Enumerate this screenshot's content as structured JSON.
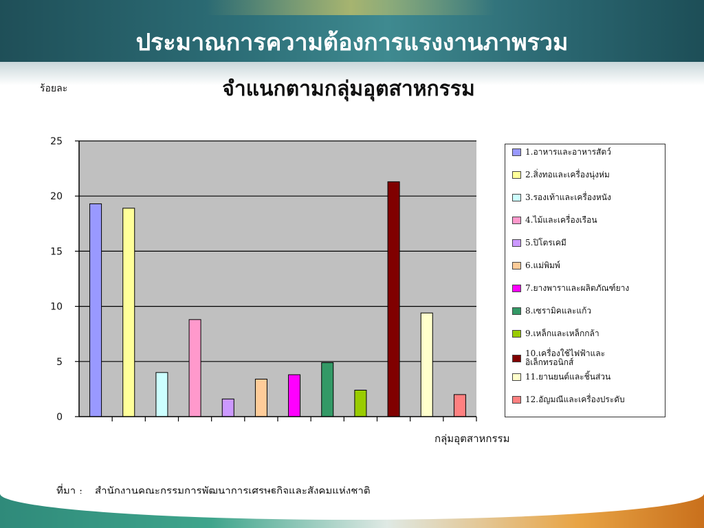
{
  "header": {
    "title": "ประมาณการความต้องการแรงงานภาพรวม",
    "subtitle": "จำแนกตามกลุ่มอุตสาหกรรม"
  },
  "source": {
    "label": "ที่มา :",
    "text": "สำนักงานคณะกรรมการพัฒนาการเศรษฐกิจและสังคมแห่งชาติ"
  },
  "chart_data": {
    "type": "bar",
    "title": "จำแนกตามกลุ่มอุตสาหกรรม",
    "ylabel": "ร้อยละ",
    "xlabel": "กลุ่มอุตสาหกรรม",
    "ylim": [
      0,
      25
    ],
    "yticks": [
      "0",
      "5",
      "10",
      "15",
      "20",
      "25"
    ],
    "grid": true,
    "legend_position": "right",
    "series": [
      {
        "name": "1.อาหารและอาหารสัตว์",
        "value": 19.3,
        "color": "#9999ff"
      },
      {
        "name": "2.สิ่งทอและเครื่องนุ่งห่ม",
        "value": 18.9,
        "color": "#ffff99"
      },
      {
        "name": "3.รองเท้าและเครื่องหนัง",
        "value": 4.0,
        "color": "#ccffff"
      },
      {
        "name": "4.ไม้และเครื่องเรือน",
        "value": 8.8,
        "color": "#ff99cc"
      },
      {
        "name": "5.ปิโตรเคมี",
        "value": 1.6,
        "color": "#cc99ff"
      },
      {
        "name": "6.แม่พิมพ์",
        "value": 3.4,
        "color": "#ffcc99"
      },
      {
        "name": "7.ยางพาราและผลิตภัณฑ์ยาง",
        "value": 3.8,
        "color": "#ff00ff"
      },
      {
        "name": "8.เซรามิคและแก้ว",
        "value": 4.9,
        "color": "#339966"
      },
      {
        "name": "9.เหล็กและเหล็กกล้า",
        "value": 2.4,
        "color": "#99cc00"
      },
      {
        "name": "10.เครื่องใช้ไฟฟ้าและ อิเล็กทรอนิกส์",
        "value": 21.3,
        "color": "#800000"
      },
      {
        "name": "11.ยานยนต์และชิ้นส่วน",
        "value": 9.4,
        "color": "#ffffcc"
      },
      {
        "name": "12.อัญมณีและเครื่องประดับ",
        "value": 2.0,
        "color": "#ff8080"
      }
    ]
  }
}
